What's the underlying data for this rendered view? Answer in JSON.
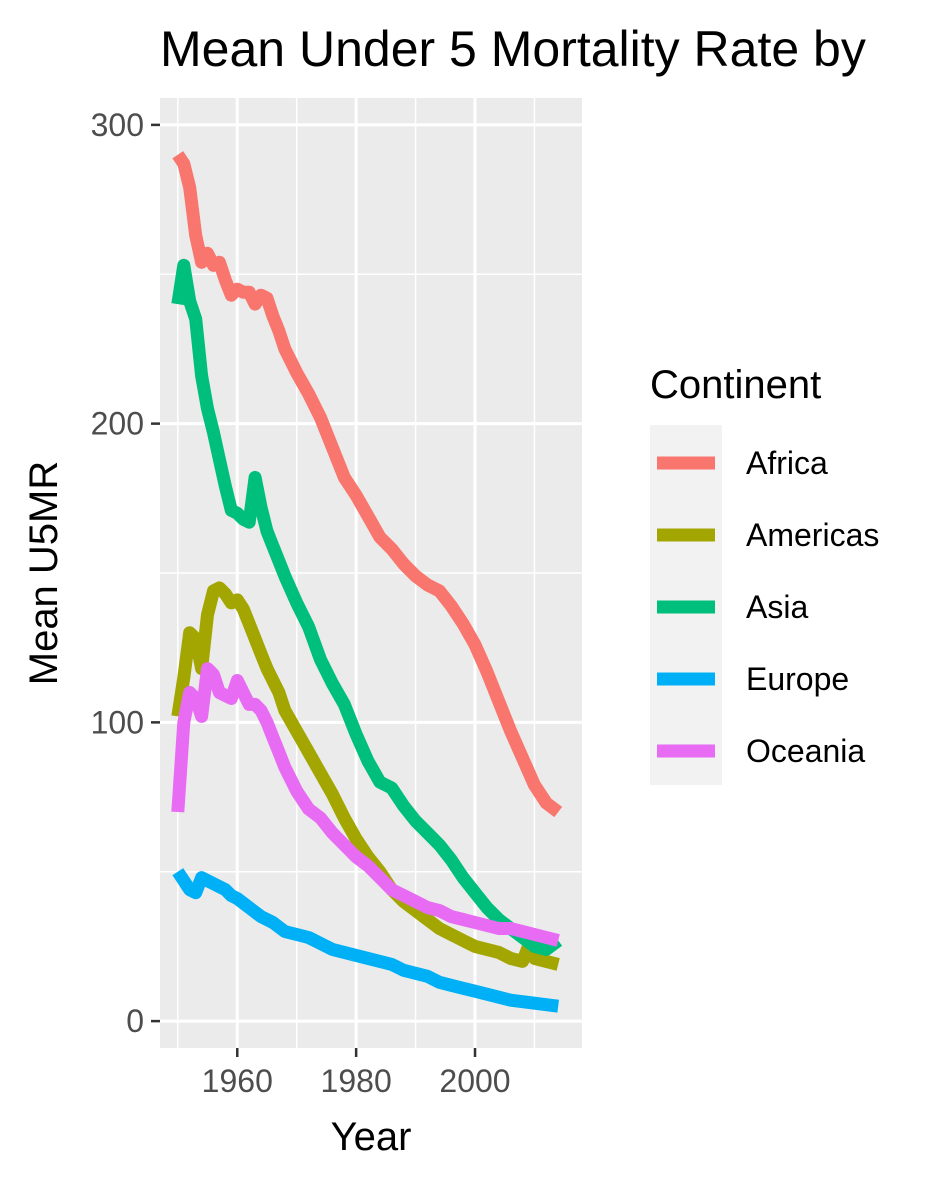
{
  "chart_data": {
    "type": "line",
    "title": "Mean Under 5 Mortality Rate by",
    "xlabel": "Year",
    "ylabel": "Mean U5MR",
    "xlim": [
      1947,
      2018
    ],
    "ylim": [
      -9,
      309
    ],
    "x_ticks": [
      1960,
      1980,
      2000
    ],
    "y_ticks": [
      0,
      100,
      200,
      300
    ],
    "grid": true,
    "legend": {
      "title": "Continent",
      "placement": "right"
    },
    "series": [
      {
        "name": "Africa",
        "color": "#F8766D",
        "points": [
          [
            1950,
            290
          ],
          [
            1951,
            287
          ],
          [
            1952,
            279
          ],
          [
            1953,
            263
          ],
          [
            1954,
            254
          ],
          [
            1955,
            257
          ],
          [
            1956,
            253
          ],
          [
            1957,
            254
          ],
          [
            1958,
            248
          ],
          [
            1959,
            243
          ],
          [
            1960,
            245
          ],
          [
            1961,
            244
          ],
          [
            1962,
            244
          ],
          [
            1963,
            240
          ],
          [
            1964,
            243
          ],
          [
            1965,
            242
          ],
          [
            1966,
            236
          ],
          [
            1967,
            231
          ],
          [
            1968,
            225
          ],
          [
            1970,
            217
          ],
          [
            1972,
            210
          ],
          [
            1974,
            202
          ],
          [
            1976,
            192
          ],
          [
            1978,
            182
          ],
          [
            1980,
            176
          ],
          [
            1982,
            169
          ],
          [
            1984,
            162
          ],
          [
            1986,
            158
          ],
          [
            1988,
            153
          ],
          [
            1990,
            149
          ],
          [
            1992,
            146
          ],
          [
            1994,
            144
          ],
          [
            1996,
            139
          ],
          [
            1998,
            133
          ],
          [
            2000,
            126
          ],
          [
            2002,
            117
          ],
          [
            2004,
            107
          ],
          [
            2006,
            97
          ],
          [
            2008,
            88
          ],
          [
            2010,
            79
          ],
          [
            2012,
            73
          ],
          [
            2014,
            70
          ]
        ]
      },
      {
        "name": "Americas",
        "color": "#A3A500",
        "points": [
          [
            1950,
            102
          ],
          [
            1951,
            115
          ],
          [
            1952,
            130
          ],
          [
            1953,
            128
          ],
          [
            1954,
            118
          ],
          [
            1955,
            136
          ],
          [
            1956,
            144
          ],
          [
            1957,
            145
          ],
          [
            1958,
            143
          ],
          [
            1959,
            140
          ],
          [
            1960,
            141
          ],
          [
            1961,
            138
          ],
          [
            1962,
            133
          ],
          [
            1963,
            128
          ],
          [
            1964,
            123
          ],
          [
            1965,
            118
          ],
          [
            1966,
            114
          ],
          [
            1967,
            110
          ],
          [
            1968,
            104
          ],
          [
            1970,
            97
          ],
          [
            1972,
            90
          ],
          [
            1974,
            83
          ],
          [
            1976,
            76
          ],
          [
            1978,
            68
          ],
          [
            1980,
            61
          ],
          [
            1982,
            55
          ],
          [
            1984,
            50
          ],
          [
            1986,
            44
          ],
          [
            1988,
            40
          ],
          [
            1990,
            37
          ],
          [
            1992,
            34
          ],
          [
            1994,
            31
          ],
          [
            1996,
            29
          ],
          [
            1998,
            27
          ],
          [
            2000,
            25
          ],
          [
            2002,
            24
          ],
          [
            2004,
            23
          ],
          [
            2006,
            21
          ],
          [
            2008,
            20
          ],
          [
            2009,
            25
          ],
          [
            2010,
            21
          ],
          [
            2012,
            20
          ],
          [
            2014,
            19
          ]
        ]
      },
      {
        "name": "Asia",
        "color": "#00BF7D",
        "points": [
          [
            1950,
            240
          ],
          [
            1951,
            253
          ],
          [
            1952,
            241
          ],
          [
            1953,
            235
          ],
          [
            1954,
            216
          ],
          [
            1955,
            205
          ],
          [
            1956,
            197
          ],
          [
            1957,
            188
          ],
          [
            1958,
            179
          ],
          [
            1959,
            171
          ],
          [
            1960,
            170
          ],
          [
            1961,
            168
          ],
          [
            1962,
            167
          ],
          [
            1963,
            182
          ],
          [
            1964,
            172
          ],
          [
            1965,
            164
          ],
          [
            1966,
            159
          ],
          [
            1967,
            154
          ],
          [
            1968,
            149
          ],
          [
            1970,
            140
          ],
          [
            1972,
            132
          ],
          [
            1974,
            121
          ],
          [
            1976,
            113
          ],
          [
            1978,
            106
          ],
          [
            1980,
            96
          ],
          [
            1982,
            87
          ],
          [
            1984,
            80
          ],
          [
            1986,
            78
          ],
          [
            1988,
            72
          ],
          [
            1990,
            67
          ],
          [
            1992,
            63
          ],
          [
            1994,
            59
          ],
          [
            1996,
            54
          ],
          [
            1998,
            48
          ],
          [
            2000,
            43
          ],
          [
            2002,
            38
          ],
          [
            2004,
            34
          ],
          [
            2006,
            31
          ],
          [
            2008,
            28
          ],
          [
            2010,
            25
          ],
          [
            2012,
            24
          ],
          [
            2014,
            27
          ]
        ]
      },
      {
        "name": "Europe",
        "color": "#00B0F6",
        "points": [
          [
            1950,
            50
          ],
          [
            1951,
            47
          ],
          [
            1952,
            44
          ],
          [
            1953,
            43
          ],
          [
            1954,
            48
          ],
          [
            1955,
            47
          ],
          [
            1956,
            46
          ],
          [
            1957,
            45
          ],
          [
            1958,
            44
          ],
          [
            1959,
            42
          ],
          [
            1960,
            41
          ],
          [
            1962,
            38
          ],
          [
            1964,
            35
          ],
          [
            1966,
            33
          ],
          [
            1968,
            30
          ],
          [
            1970,
            29
          ],
          [
            1972,
            28
          ],
          [
            1974,
            26
          ],
          [
            1976,
            24
          ],
          [
            1978,
            23
          ],
          [
            1980,
            22
          ],
          [
            1982,
            21
          ],
          [
            1984,
            20
          ],
          [
            1986,
            19
          ],
          [
            1988,
            17
          ],
          [
            1990,
            16
          ],
          [
            1992,
            15
          ],
          [
            1994,
            13
          ],
          [
            1996,
            12
          ],
          [
            1998,
            11
          ],
          [
            2000,
            10
          ],
          [
            2002,
            9
          ],
          [
            2004,
            8
          ],
          [
            2006,
            7
          ],
          [
            2008,
            6.5
          ],
          [
            2010,
            6
          ],
          [
            2012,
            5.5
          ],
          [
            2014,
            5
          ]
        ]
      },
      {
        "name": "Oceania",
        "color": "#E76BF3",
        "points": [
          [
            1950,
            70
          ],
          [
            1951,
            100
          ],
          [
            1952,
            110
          ],
          [
            1953,
            108
          ],
          [
            1954,
            102
          ],
          [
            1955,
            118
          ],
          [
            1956,
            116
          ],
          [
            1957,
            110
          ],
          [
            1958,
            109
          ],
          [
            1959,
            108
          ],
          [
            1960,
            114
          ],
          [
            1961,
            110
          ],
          [
            1962,
            106
          ],
          [
            1963,
            106
          ],
          [
            1964,
            104
          ],
          [
            1965,
            100
          ],
          [
            1966,
            95
          ],
          [
            1967,
            90
          ],
          [
            1968,
            85
          ],
          [
            1970,
            77
          ],
          [
            1972,
            71
          ],
          [
            1974,
            68
          ],
          [
            1976,
            63
          ],
          [
            1978,
            59
          ],
          [
            1980,
            55
          ],
          [
            1982,
            52
          ],
          [
            1984,
            48
          ],
          [
            1986,
            44
          ],
          [
            1988,
            42
          ],
          [
            1990,
            40
          ],
          [
            1992,
            38
          ],
          [
            1994,
            37
          ],
          [
            1996,
            35
          ],
          [
            1998,
            34
          ],
          [
            2000,
            33
          ],
          [
            2002,
            32
          ],
          [
            2004,
            31
          ],
          [
            2006,
            31
          ],
          [
            2008,
            30
          ],
          [
            2010,
            29
          ],
          [
            2012,
            28
          ],
          [
            2014,
            27
          ]
        ]
      }
    ]
  }
}
